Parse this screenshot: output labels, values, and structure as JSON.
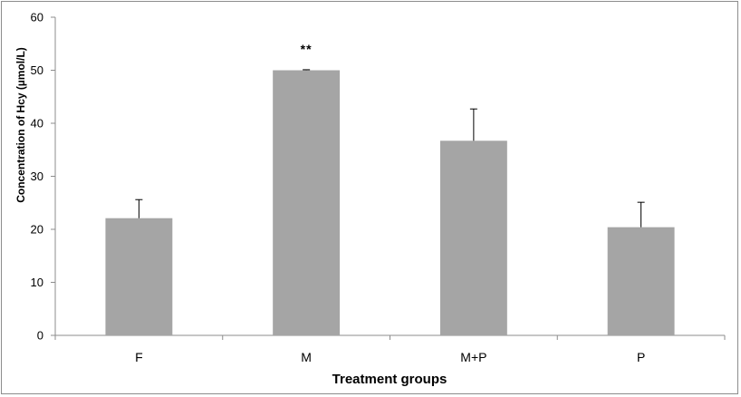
{
  "chart_data": {
    "type": "bar",
    "title": "",
    "xlabel": "Treatment groups",
    "ylabel": "Concentration of Hcy (µmol/L)",
    "categories": [
      "F",
      "M",
      "M+P",
      "P"
    ],
    "values": [
      22.1,
      50.0,
      36.7,
      20.4
    ],
    "error": [
      3.5,
      0.1,
      6.0,
      4.7
    ],
    "annotations": [
      {
        "category": "M",
        "text": "**"
      }
    ],
    "yticks": [
      0,
      10,
      20,
      30,
      40,
      50,
      60
    ],
    "ylim": [
      0,
      60
    ],
    "bar_color": "#a5a5a5",
    "grid": false,
    "legend": "none"
  }
}
